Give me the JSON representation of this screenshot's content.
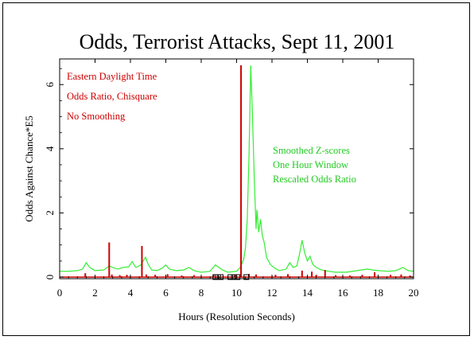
{
  "chart_data": {
    "type": "line",
    "title": "Odds, Terrorist Attacks, Sept 11, 2001",
    "xlabel": "Hours (Resolution Seconds)",
    "ylabel": "Odds Against Chance*E5",
    "xlim": [
      0,
      20
    ],
    "ylim": [
      -0.05,
      6.8
    ],
    "x_ticks": [
      0,
      2,
      4,
      6,
      8,
      10,
      12,
      14,
      16,
      18,
      20
    ],
    "y_ticks": [
      0,
      2,
      4,
      6
    ],
    "annotations_left": [
      "Eastern Daylight Time",
      "Odds Ratio, Chisquare",
      "No Smoothing"
    ],
    "annotations_right": [
      "Smoothed Z-scores",
      "One Hour Window",
      "Rescaled Odds Ratio"
    ],
    "colors": {
      "odds_ratio": "#cc0000",
      "smoothed": "#33ee33",
      "markers": "#000000"
    },
    "series": [
      {
        "kind": "spikes",
        "values": [
          [
            1.45,
            0.12
          ],
          [
            2.8,
            1.08
          ],
          [
            2.95,
            0.08
          ],
          [
            3.4,
            0.06
          ],
          [
            3.8,
            0.07
          ],
          [
            4.65,
            0.97
          ],
          [
            4.9,
            0.08
          ],
          [
            5.4,
            0.07
          ],
          [
            6.1,
            0.09
          ],
          [
            6.9,
            0.05
          ],
          [
            7.6,
            0.06
          ],
          [
            8.7,
            0.08
          ],
          [
            9.9,
            0.06
          ],
          [
            10.25,
            6.6
          ],
          [
            10.7,
            0.1
          ],
          [
            11.1,
            0.08
          ],
          [
            12.2,
            0.07
          ],
          [
            12.9,
            0.09
          ],
          [
            13.7,
            0.2
          ],
          [
            14.25,
            0.17
          ],
          [
            14.5,
            0.07
          ],
          [
            15.0,
            0.22
          ],
          [
            15.6,
            0.06
          ],
          [
            16.4,
            0.05
          ],
          [
            17.1,
            0.07
          ],
          [
            17.8,
            0.15
          ],
          [
            18.7,
            0.07
          ],
          [
            19.3,
            0.08
          ],
          [
            19.8,
            0.05
          ]
        ]
      },
      {
        "kind": "line",
        "values": [
          [
            0.0,
            0.18
          ],
          [
            0.5,
            0.18
          ],
          [
            1.0,
            0.2
          ],
          [
            1.3,
            0.25
          ],
          [
            1.5,
            0.45
          ],
          [
            1.7,
            0.3
          ],
          [
            2.0,
            0.2
          ],
          [
            2.5,
            0.22
          ],
          [
            2.8,
            0.35
          ],
          [
            3.0,
            0.3
          ],
          [
            3.3,
            0.25
          ],
          [
            3.6,
            0.3
          ],
          [
            3.9,
            0.32
          ],
          [
            4.1,
            0.48
          ],
          [
            4.3,
            0.3
          ],
          [
            4.6,
            0.38
          ],
          [
            4.85,
            0.62
          ],
          [
            5.0,
            0.4
          ],
          [
            5.2,
            0.22
          ],
          [
            5.5,
            0.2
          ],
          [
            5.8,
            0.28
          ],
          [
            6.0,
            0.38
          ],
          [
            6.2,
            0.25
          ],
          [
            6.6,
            0.2
          ],
          [
            7.0,
            0.22
          ],
          [
            7.3,
            0.3
          ],
          [
            7.6,
            0.2
          ],
          [
            8.0,
            0.15
          ],
          [
            8.5,
            0.18
          ],
          [
            8.8,
            0.38
          ],
          [
            9.0,
            0.3
          ],
          [
            9.2,
            0.22
          ],
          [
            9.5,
            0.15
          ],
          [
            10.0,
            0.18
          ],
          [
            10.2,
            0.3
          ],
          [
            10.4,
            0.55
          ],
          [
            10.5,
            0.9
          ],
          [
            10.6,
            1.8
          ],
          [
            10.7,
            3.8
          ],
          [
            10.8,
            6.6
          ],
          [
            10.9,
            5.0
          ],
          [
            11.0,
            3.0
          ],
          [
            11.1,
            1.5
          ],
          [
            11.15,
            2.1
          ],
          [
            11.25,
            1.4
          ],
          [
            11.35,
            1.8
          ],
          [
            11.45,
            1.3
          ],
          [
            11.55,
            1.1
          ],
          [
            11.7,
            0.6
          ],
          [
            11.9,
            0.4
          ],
          [
            12.1,
            0.3
          ],
          [
            12.4,
            0.2
          ],
          [
            12.8,
            0.25
          ],
          [
            13.0,
            0.45
          ],
          [
            13.2,
            0.3
          ],
          [
            13.4,
            0.35
          ],
          [
            13.55,
            0.7
          ],
          [
            13.7,
            1.15
          ],
          [
            13.85,
            0.75
          ],
          [
            14.0,
            0.5
          ],
          [
            14.15,
            0.65
          ],
          [
            14.3,
            0.4
          ],
          [
            14.5,
            0.3
          ],
          [
            14.8,
            0.22
          ],
          [
            15.2,
            0.18
          ],
          [
            15.6,
            0.15
          ],
          [
            16.2,
            0.15
          ],
          [
            16.8,
            0.2
          ],
          [
            17.4,
            0.25
          ],
          [
            17.7,
            0.22
          ],
          [
            18.0,
            0.2
          ],
          [
            18.6,
            0.18
          ],
          [
            19.0,
            0.2
          ],
          [
            19.4,
            0.3
          ],
          [
            19.7,
            0.2
          ],
          [
            20.0,
            0.18
          ]
        ]
      },
      {
        "kind": "markers",
        "values": [
          8.8,
          8.95,
          9.1,
          9.65,
          9.85,
          10.05,
          10.55
        ]
      }
    ]
  }
}
